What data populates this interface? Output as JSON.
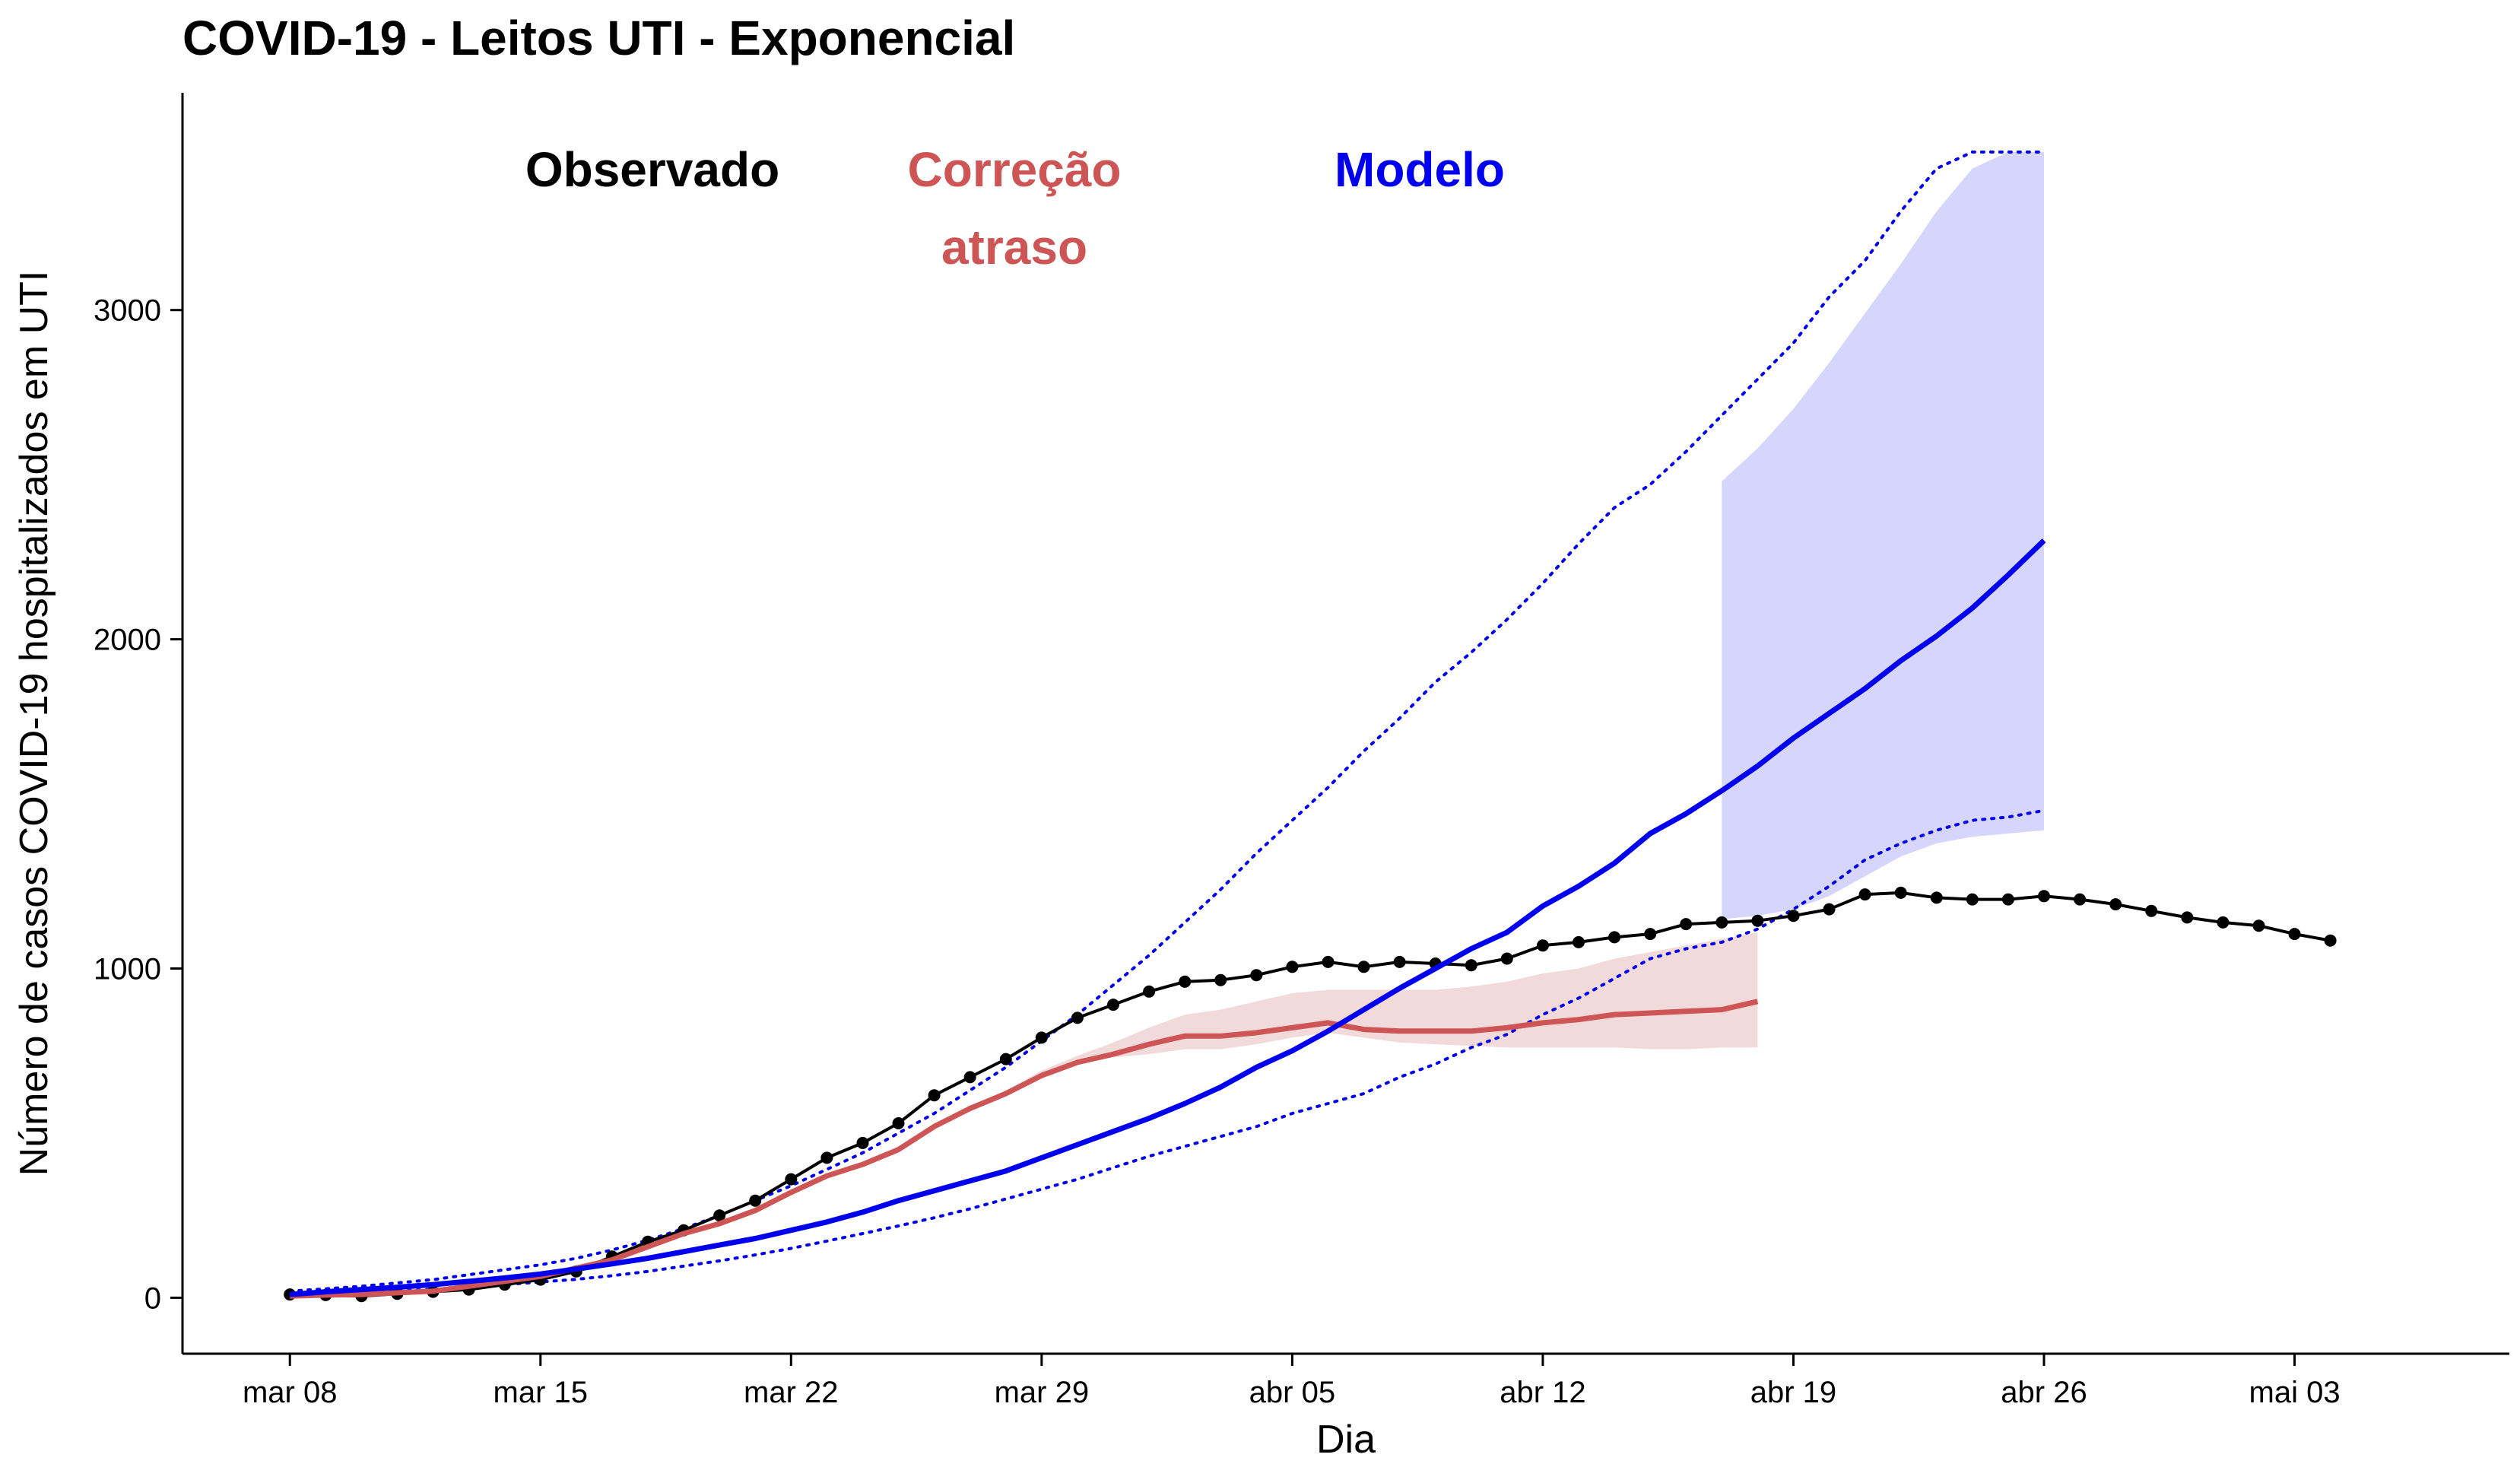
{
  "chart_data": {
    "type": "line",
    "title": "COVID-19 - Leitos UTI - Exponencial",
    "xlabel": "Dia",
    "ylabel": "Número de casos COVID-19 hospitalizados em UTI",
    "x_range": [
      -3,
      62
    ],
    "ylim": [
      -170,
      3660
    ],
    "grid": false,
    "legend_placement": "top",
    "x_ticks": [
      {
        "x": 0,
        "label": "mar 08"
      },
      {
        "x": 7,
        "label": "mar 15"
      },
      {
        "x": 14,
        "label": "mar 22"
      },
      {
        "x": 21,
        "label": "mar 29"
      },
      {
        "x": 28,
        "label": "abr 05"
      },
      {
        "x": 35,
        "label": "abr 12"
      },
      {
        "x": 42,
        "label": "abr 19"
      },
      {
        "x": 49,
        "label": "abr 26"
      },
      {
        "x": 56,
        "label": "mai 03"
      }
    ],
    "y_ticks": [
      {
        "y": 0,
        "label": "0"
      },
      {
        "y": 1000,
        "label": "1000"
      },
      {
        "y": 2000,
        "label": "2000"
      },
      {
        "y": 3000,
        "label": "3000"
      }
    ],
    "legend": [
      {
        "lines": [
          "Observado"
        ],
        "color": "#000000"
      },
      {
        "lines": [
          "Correção",
          "atraso"
        ],
        "color": "#CD5555"
      },
      {
        "lines": [
          "Modelo"
        ],
        "color": "#0000EE"
      }
    ],
    "series": [
      {
        "name": "Observado",
        "color": "#000000",
        "style": "line-with-points",
        "x": [
          0,
          1,
          2,
          3,
          4,
          5,
          6,
          7,
          8,
          9,
          10,
          11,
          12,
          13,
          14,
          15,
          16,
          17,
          18,
          19,
          20,
          21,
          22,
          23,
          24,
          25,
          26,
          27,
          28,
          29,
          30,
          31,
          32,
          33,
          34,
          35,
          36,
          37,
          38,
          39,
          40,
          41,
          42,
          43,
          44,
          45,
          46,
          47,
          48,
          49,
          50,
          51,
          52,
          53,
          54,
          55,
          56,
          57
        ],
        "y": [
          10,
          8,
          5,
          12,
          18,
          25,
          40,
          55,
          80,
          125,
          170,
          205,
          250,
          295,
          360,
          425,
          470,
          530,
          615,
          670,
          725,
          790,
          850,
          890,
          930,
          960,
          965,
          980,
          1005,
          1020,
          1005,
          1020,
          1015,
          1010,
          1030,
          1070,
          1080,
          1095,
          1105,
          1135,
          1140,
          1145,
          1160,
          1180,
          1225,
          1230,
          1215,
          1210,
          1210,
          1220,
          1210,
          1195,
          1175,
          1155,
          1140,
          1130,
          1105,
          1085
        ]
      },
      {
        "name": "Correção atraso",
        "color": "#CD5555",
        "style": "line",
        "x": [
          0,
          1,
          2,
          3,
          4,
          5,
          6,
          7,
          8,
          9,
          10,
          11,
          12,
          13,
          14,
          15,
          16,
          17,
          18,
          19,
          20,
          21,
          22,
          23,
          24,
          25,
          26,
          27,
          28,
          29,
          30,
          31,
          32,
          33,
          34,
          35,
          36,
          37,
          38,
          39,
          40,
          41
        ],
        "y": [
          5,
          8,
          10,
          15,
          20,
          35,
          50,
          65,
          90,
          115,
          155,
          195,
          225,
          265,
          320,
          370,
          405,
          450,
          520,
          575,
          620,
          675,
          715,
          740,
          770,
          795,
          795,
          805,
          820,
          835,
          815,
          810,
          810,
          810,
          820,
          835,
          845,
          860,
          865,
          870,
          875,
          900
        ],
        "band_lower": [
          0,
          5,
          8,
          12,
          18,
          30,
          45,
          60,
          85,
          110,
          150,
          190,
          220,
          260,
          315,
          365,
          400,
          445,
          515,
          570,
          615,
          670,
          710,
          730,
          740,
          755,
          755,
          770,
          790,
          805,
          790,
          775,
          770,
          765,
          760,
          760,
          760,
          760,
          755,
          755,
          760,
          760
        ],
        "band_upper": [
          10,
          12,
          14,
          20,
          25,
          40,
          55,
          70,
          95,
          120,
          160,
          200,
          230,
          270,
          325,
          375,
          410,
          455,
          525,
          580,
          630,
          690,
          735,
          775,
          820,
          860,
          875,
          900,
          925,
          935,
          935,
          935,
          935,
          945,
          960,
          985,
          1000,
          1030,
          1050,
          1070,
          1090,
          1110
        ]
      },
      {
        "name": "Modelo",
        "color": "#0000EE",
        "style": "line",
        "x": [
          0,
          1,
          2,
          3,
          4,
          5,
          6,
          7,
          8,
          9,
          10,
          11,
          12,
          13,
          14,
          15,
          16,
          17,
          18,
          19,
          20,
          21,
          22,
          23,
          24,
          25,
          26,
          27,
          28,
          29,
          30,
          31,
          32,
          33,
          34,
          35,
          36,
          37,
          38,
          39,
          40,
          41,
          42,
          43,
          44,
          45,
          46,
          47,
          48,
          49
        ],
        "y": [
          10,
          18,
          25,
          32,
          40,
          50,
          60,
          72,
          87,
          103,
          120,
          140,
          160,
          180,
          205,
          230,
          260,
          295,
          325,
          355,
          385,
          425,
          465,
          505,
          545,
          590,
          640,
          700,
          750,
          810,
          875,
          940,
          1000,
          1060,
          1110,
          1190,
          1250,
          1320,
          1410,
          1470,
          1540,
          1615,
          1700,
          1775,
          1850,
          1935,
          2010,
          2095,
          2195,
          2300
        ],
        "dotted_lower": [
          5,
          10,
          15,
          20,
          26,
          33,
          40,
          48,
          56,
          67,
          80,
          96,
          112,
          130,
          150,
          172,
          195,
          218,
          243,
          270,
          300,
          330,
          360,
          395,
          430,
          460,
          490,
          520,
          560,
          590,
          620,
          670,
          710,
          760,
          800,
          860,
          910,
          970,
          1030,
          1060,
          1080,
          1120,
          1180,
          1250,
          1330,
          1380,
          1420,
          1450,
          1460,
          1480
        ],
        "dotted_upper": [
          20,
          27,
          35,
          45,
          55,
          70,
          85,
          100,
          120,
          145,
          175,
          210,
          250,
          295,
          340,
          390,
          440,
          500,
          560,
          630,
          700,
          780,
          860,
          950,
          1040,
          1140,
          1240,
          1350,
          1450,
          1550,
          1660,
          1760,
          1870,
          1960,
          2060,
          2170,
          2290,
          2400,
          2470,
          2570,
          2680,
          2790,
          2900,
          3040,
          3150,
          3300,
          3430,
          3480,
          3480,
          3480
        ],
        "ribbon_x": [
          40,
          41,
          42,
          43,
          44,
          45,
          46,
          47,
          48,
          49
        ],
        "ribbon_lower": [
          1150,
          1160,
          1180,
          1220,
          1280,
          1340,
          1380,
          1400,
          1410,
          1420
        ],
        "ribbon_upper": [
          2480,
          2580,
          2700,
          2840,
          2990,
          3140,
          3300,
          3430,
          3480,
          3480
        ]
      }
    ]
  }
}
